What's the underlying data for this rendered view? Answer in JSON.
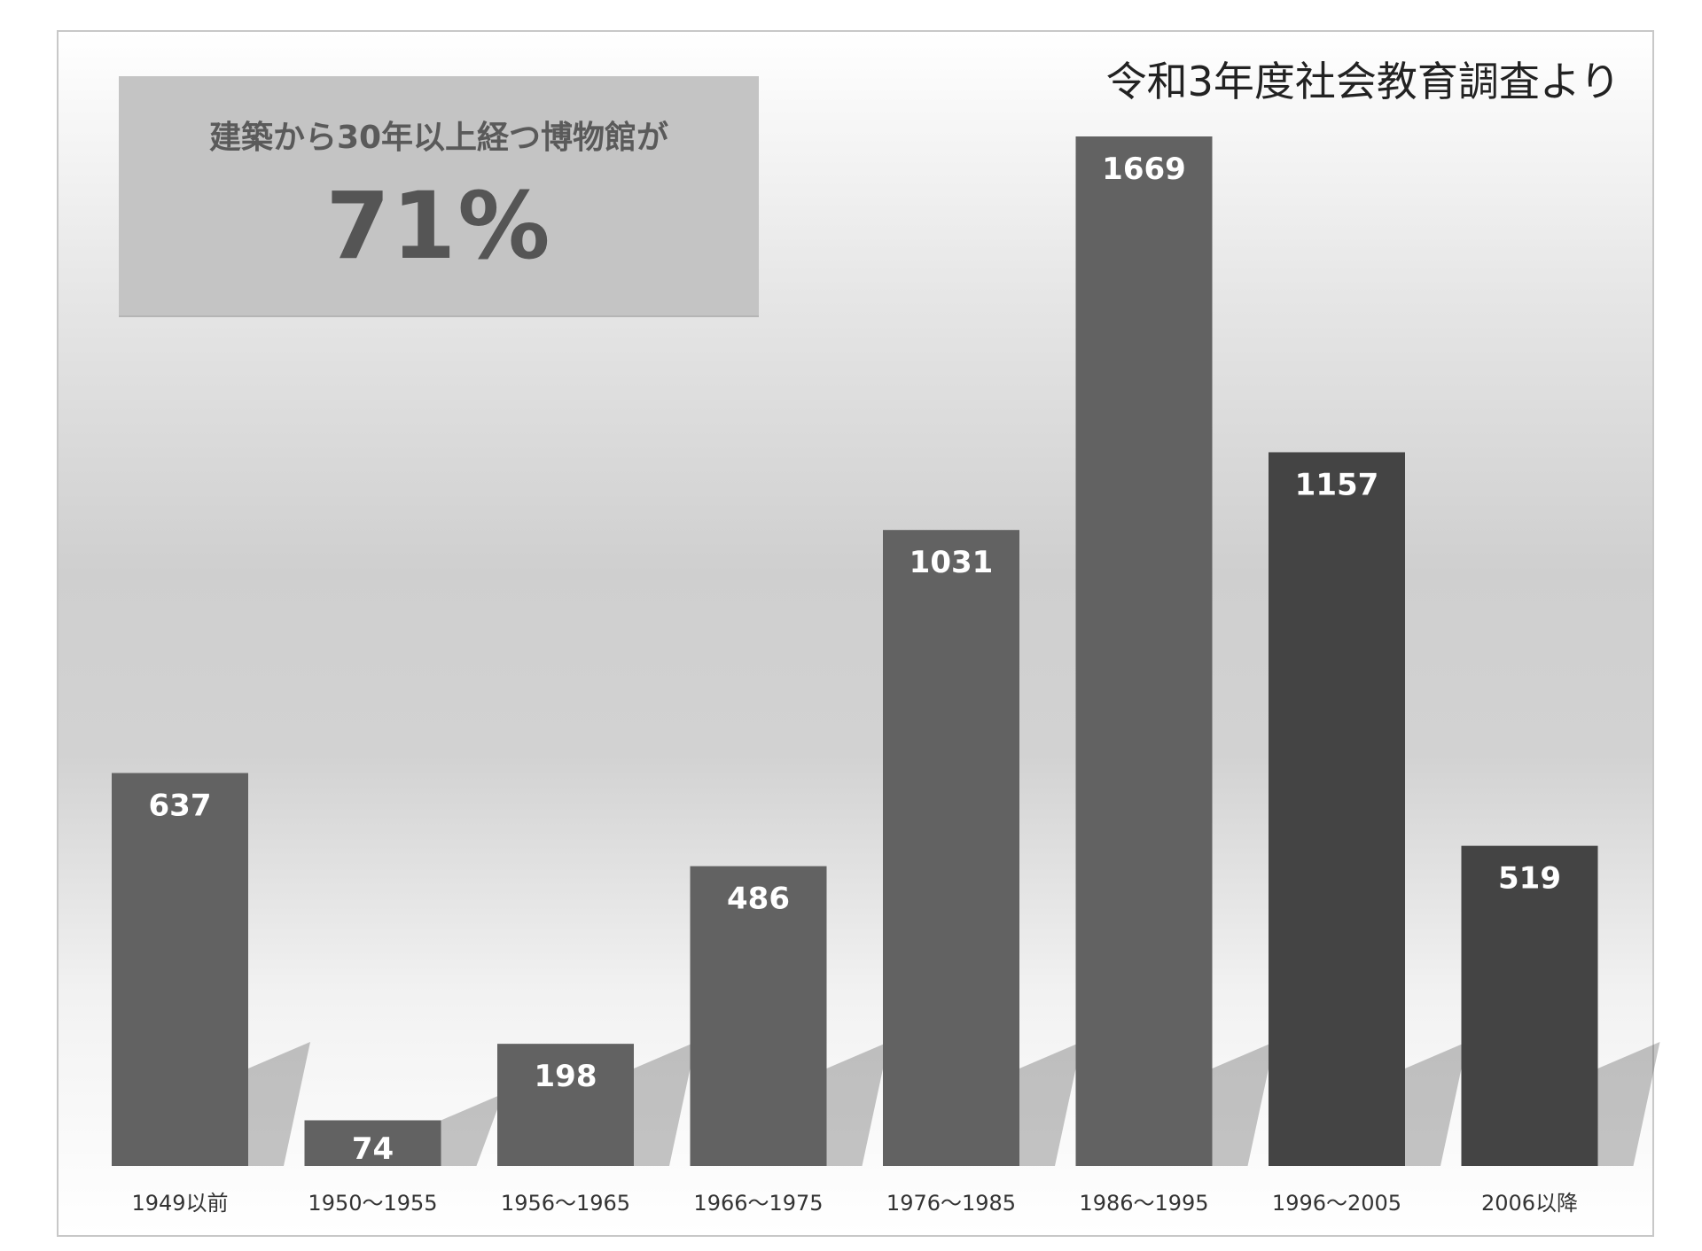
{
  "chart_data": {
    "type": "bar",
    "source_note": "令和3年度社会教育調査より",
    "callout": {
      "text": "建築から30年以上経つ博物館が",
      "value": "71%"
    },
    "categories": [
      "1949以前",
      "1950～1955",
      "1956～1965",
      "1966～1975",
      "1976～1985",
      "1986～1995",
      "1996～2005",
      "2006以降"
    ],
    "values": [
      637,
      74,
      198,
      486,
      1031,
      1669,
      1157,
      519
    ],
    "bar_colors": [
      "#626262",
      "#626262",
      "#626262",
      "#626262",
      "#626262",
      "#626262",
      "#444444",
      "#444444"
    ],
    "ylim": [
      0,
      1800
    ],
    "grid": false,
    "legend": "none",
    "data_labels": true
  }
}
